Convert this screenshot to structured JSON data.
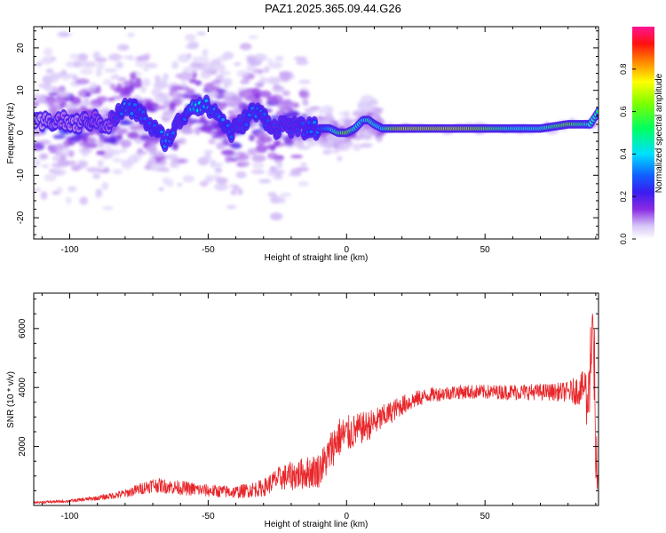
{
  "figure_title": "PAZ1.2025.365.09.44.G26",
  "chart_data": [
    {
      "type": "heatmap",
      "id": "spectrogram",
      "xlabel": "Height of straight line (km)",
      "ylabel": "Frequency (Hz)",
      "xlim": [
        -113,
        91
      ],
      "ylim": [
        -25,
        25
      ],
      "x_ticks": [
        -100,
        -50,
        0,
        50
      ],
      "x_tick_labels": [
        "-100",
        "-50",
        "0",
        "50"
      ],
      "y_ticks": [
        -20,
        -10,
        0,
        10,
        20
      ],
      "y_tick_labels": [
        "-20",
        "-10",
        "0",
        "10",
        "20"
      ],
      "ridge": {
        "description": "dominant frequency trace",
        "x": [
          -112,
          -105,
          -98,
          -92,
          -86,
          -80,
          -75,
          -70,
          -65,
          -60,
          -55,
          -50,
          -46,
          -42,
          -38,
          -34,
          -30,
          -26,
          -22,
          -18,
          -14,
          -10,
          -6,
          -3,
          0,
          3,
          6,
          8,
          10,
          13,
          16,
          20,
          30,
          40,
          50,
          60,
          70,
          80,
          85,
          88,
          91
        ],
        "y": [
          2,
          3,
          2,
          3,
          2,
          6,
          5,
          1,
          -2,
          3,
          7,
          6,
          4,
          0,
          2,
          5,
          4,
          1,
          2,
          1,
          1,
          1,
          1,
          0,
          0,
          1,
          3,
          3,
          2,
          1,
          1,
          1,
          1,
          1,
          1,
          1,
          1,
          2,
          2,
          2,
          5
        ],
        "amplitude": [
          0.1,
          0.15,
          0.12,
          0.18,
          0.15,
          0.35,
          0.3,
          0.3,
          0.35,
          0.25,
          0.45,
          0.35,
          0.35,
          0.3,
          0.25,
          0.35,
          0.3,
          0.25,
          0.25,
          0.25,
          0.3,
          0.35,
          0.5,
          0.7,
          0.9,
          0.6,
          0.55,
          0.65,
          0.6,
          0.55,
          0.85,
          0.95,
          0.95,
          0.95,
          0.85,
          0.6,
          0.6,
          0.85,
          0.7,
          0.6,
          0.6
        ]
      },
      "colorbar": {
        "label": "Normalized spectral amplitude",
        "range": [
          0,
          1
        ],
        "ticks": [
          0.0,
          0.2,
          0.4,
          0.6,
          0.8
        ],
        "tick_labels": [
          "0.0",
          "0.2",
          "0.4",
          "0.6",
          "0.8"
        ],
        "colormap": "rainbow (white→purple→blue→cyan→green→yellow→red→pink)"
      }
    },
    {
      "type": "line",
      "id": "snr",
      "xlabel": "Height of straight line (km)",
      "ylabel": "SNR (10 * v/v)",
      "xlim": [
        -113,
        91
      ],
      "ylim": [
        0,
        7200
      ],
      "x_ticks": [
        -100,
        -50,
        0,
        50
      ],
      "x_tick_labels": [
        "-100",
        "-50",
        "0",
        "50"
      ],
      "y_ticks": [
        2000,
        4000,
        6000
      ],
      "y_tick_labels": [
        "2000",
        "4000",
        "6000"
      ],
      "series": [
        {
          "name": "SNR",
          "color": "#e8262a",
          "x": [
            -113,
            -100,
            -90,
            -80,
            -70,
            -60,
            -50,
            -40,
            -30,
            -25,
            -20,
            -15,
            -10,
            -7,
            -5,
            -3,
            0,
            5,
            10,
            15,
            20,
            25,
            30,
            35,
            40,
            45,
            50,
            55,
            60,
            65,
            70,
            75,
            80,
            83,
            86,
            88,
            89,
            90,
            91
          ],
          "y": [
            100,
            150,
            250,
            400,
            700,
            600,
            500,
            450,
            600,
            900,
            1000,
            1100,
            1200,
            1600,
            2000,
            2300,
            2400,
            2600,
            2800,
            3100,
            3400,
            3600,
            3750,
            3800,
            3850,
            3850,
            3850,
            3850,
            3850,
            3850,
            3850,
            3850,
            3850,
            3900,
            4000,
            3500,
            6500,
            1500,
            600
          ],
          "noise": [
            40,
            50,
            80,
            150,
            250,
            250,
            220,
            220,
            300,
            400,
            500,
            550,
            600,
            650,
            700,
            700,
            650,
            550,
            500,
            400,
            350,
            300,
            250,
            250,
            250,
            250,
            250,
            250,
            280,
            280,
            280,
            300,
            350,
            500,
            600,
            1200,
            800,
            800,
            300
          ]
        }
      ]
    }
  ]
}
